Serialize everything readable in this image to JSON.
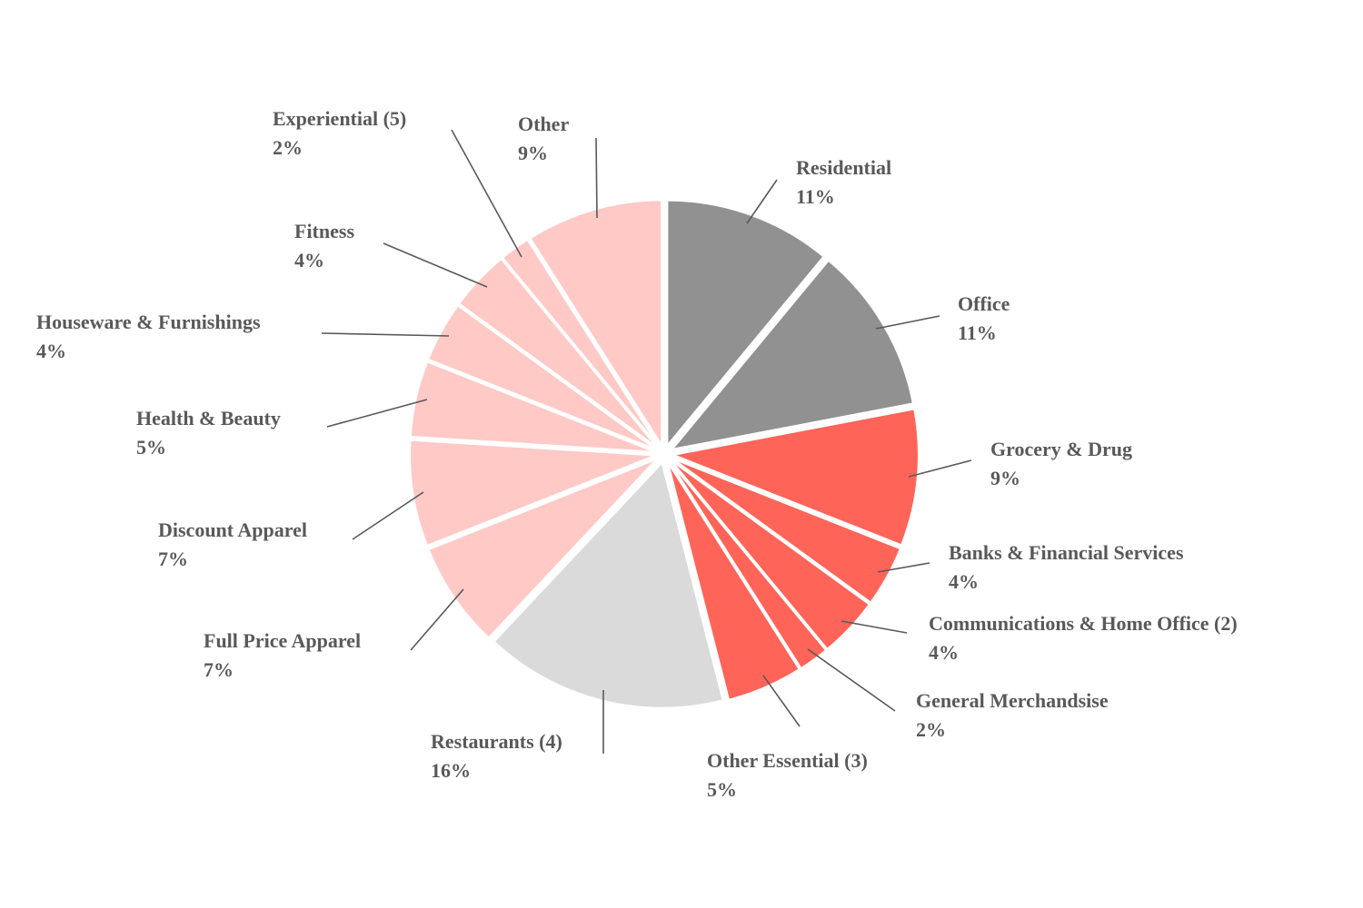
{
  "chart_data": {
    "type": "pie",
    "title": "",
    "slices": [
      {
        "name": "Residential",
        "label": "11%",
        "value": 11,
        "color": "#919191"
      },
      {
        "name": "Office",
        "label": "11%",
        "value": 11,
        "color": "#919191"
      },
      {
        "name": "Grocery & Drug",
        "label": "9%",
        "value": 9,
        "color": "#ff6459"
      },
      {
        "name": "Banks & Financial Services",
        "label": "4%",
        "value": 4,
        "color": "#ff6459"
      },
      {
        "name": "Communications & Home Office (2)",
        "label": "4%",
        "value": 4,
        "color": "#ff6459"
      },
      {
        "name": "General Merchandsise",
        "label": "2%",
        "value": 2,
        "color": "#ff6459"
      },
      {
        "name": "Other Essential (3)",
        "label": "5%",
        "value": 5,
        "color": "#ff6459"
      },
      {
        "name": "Restaurants (4)",
        "label": "16%",
        "value": 16,
        "color": "#dadada"
      },
      {
        "name": "Full Price Apparel",
        "label": "7%",
        "value": 7,
        "color": "#ffc9c6"
      },
      {
        "name": "Discount Apparel",
        "label": "7%",
        "value": 7,
        "color": "#ffc9c6"
      },
      {
        "name": "Health & Beauty",
        "label": "5%",
        "value": 5,
        "color": "#ffc9c6"
      },
      {
        "name": "Houseware & Furnishings",
        "label": "4%",
        "value": 4,
        "color": "#ffc9c6"
      },
      {
        "name": "Fitness",
        "label": "4%",
        "value": 4,
        "color": "#ffc9c6"
      },
      {
        "name": "Experiential (5)",
        "label": "2%",
        "value": 2,
        "color": "#ffc9c6"
      },
      {
        "name": "Other",
        "label": "9%",
        "value": 9,
        "color": "#ffc9c6"
      }
    ]
  }
}
